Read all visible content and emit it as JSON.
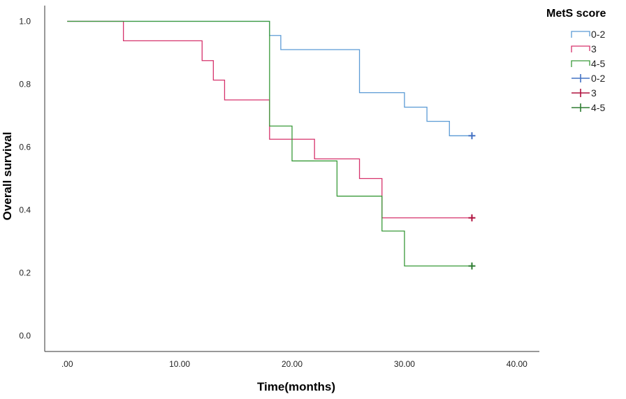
{
  "chart_data": {
    "type": "line",
    "subtype": "kaplan-meier-step",
    "title": "",
    "xlabel": "Time(months)",
    "ylabel": "Overall survival",
    "xlim": [
      -2,
      42
    ],
    "ylim": [
      -0.05,
      1.05
    ],
    "x_ticks": [
      0,
      10,
      20,
      30,
      40
    ],
    "x_tick_labels": [
      ".00",
      "10.00",
      "20.00",
      "30.00",
      "40.00"
    ],
    "y_ticks": [
      0,
      0.2,
      0.4,
      0.6,
      0.8,
      1.0
    ],
    "y_tick_labels": [
      "0.0",
      "0.2",
      "0.4",
      "0.6",
      "0.8",
      "1.0"
    ],
    "grid": false,
    "legend": {
      "title": "MetS score",
      "placement": "top-right",
      "entries": [
        {
          "label": "0-2",
          "kind": "survival",
          "series": 0
        },
        {
          "label": "3",
          "kind": "survival",
          "series": 1
        },
        {
          "label": "4-5",
          "kind": "survival",
          "series": 2
        },
        {
          "label": "0-2",
          "kind": "censored",
          "series": 0
        },
        {
          "label": "3",
          "kind": "censored",
          "series": 1
        },
        {
          "label": "4-5",
          "kind": "censored",
          "series": 2
        }
      ]
    },
    "series": [
      {
        "name": "0-2",
        "color": "#5b9bd5",
        "censor_color": "#4472c4",
        "steps": [
          [
            0,
            1.0
          ],
          [
            18,
            0.955
          ],
          [
            19,
            0.91
          ],
          [
            26,
            0.773
          ],
          [
            30,
            0.727
          ],
          [
            32,
            0.682
          ],
          [
            34,
            0.636
          ]
        ],
        "end_x": 36,
        "censored": [
          [
            36,
            0.636
          ]
        ]
      },
      {
        "name": "3",
        "color": "#d6336c",
        "censor_color": "#b0123f",
        "steps": [
          [
            0,
            1.0
          ],
          [
            5,
            0.938
          ],
          [
            12,
            0.875
          ],
          [
            13,
            0.813
          ],
          [
            14,
            0.75
          ],
          [
            18,
            0.625
          ],
          [
            22,
            0.5625
          ],
          [
            26,
            0.5
          ],
          [
            28,
            0.375
          ]
        ],
        "end_x": 36,
        "censored": [
          [
            36,
            0.375
          ]
        ]
      },
      {
        "name": "4-5",
        "color": "#3a9a3a",
        "censor_color": "#2e7d32",
        "steps": [
          [
            0,
            1.0
          ],
          [
            18,
            0.667
          ],
          [
            20,
            0.556
          ],
          [
            24,
            0.444
          ],
          [
            28,
            0.333
          ],
          [
            30,
            0.222
          ]
        ],
        "end_x": 36,
        "censored": [
          [
            36,
            0.222
          ]
        ]
      }
    ]
  }
}
